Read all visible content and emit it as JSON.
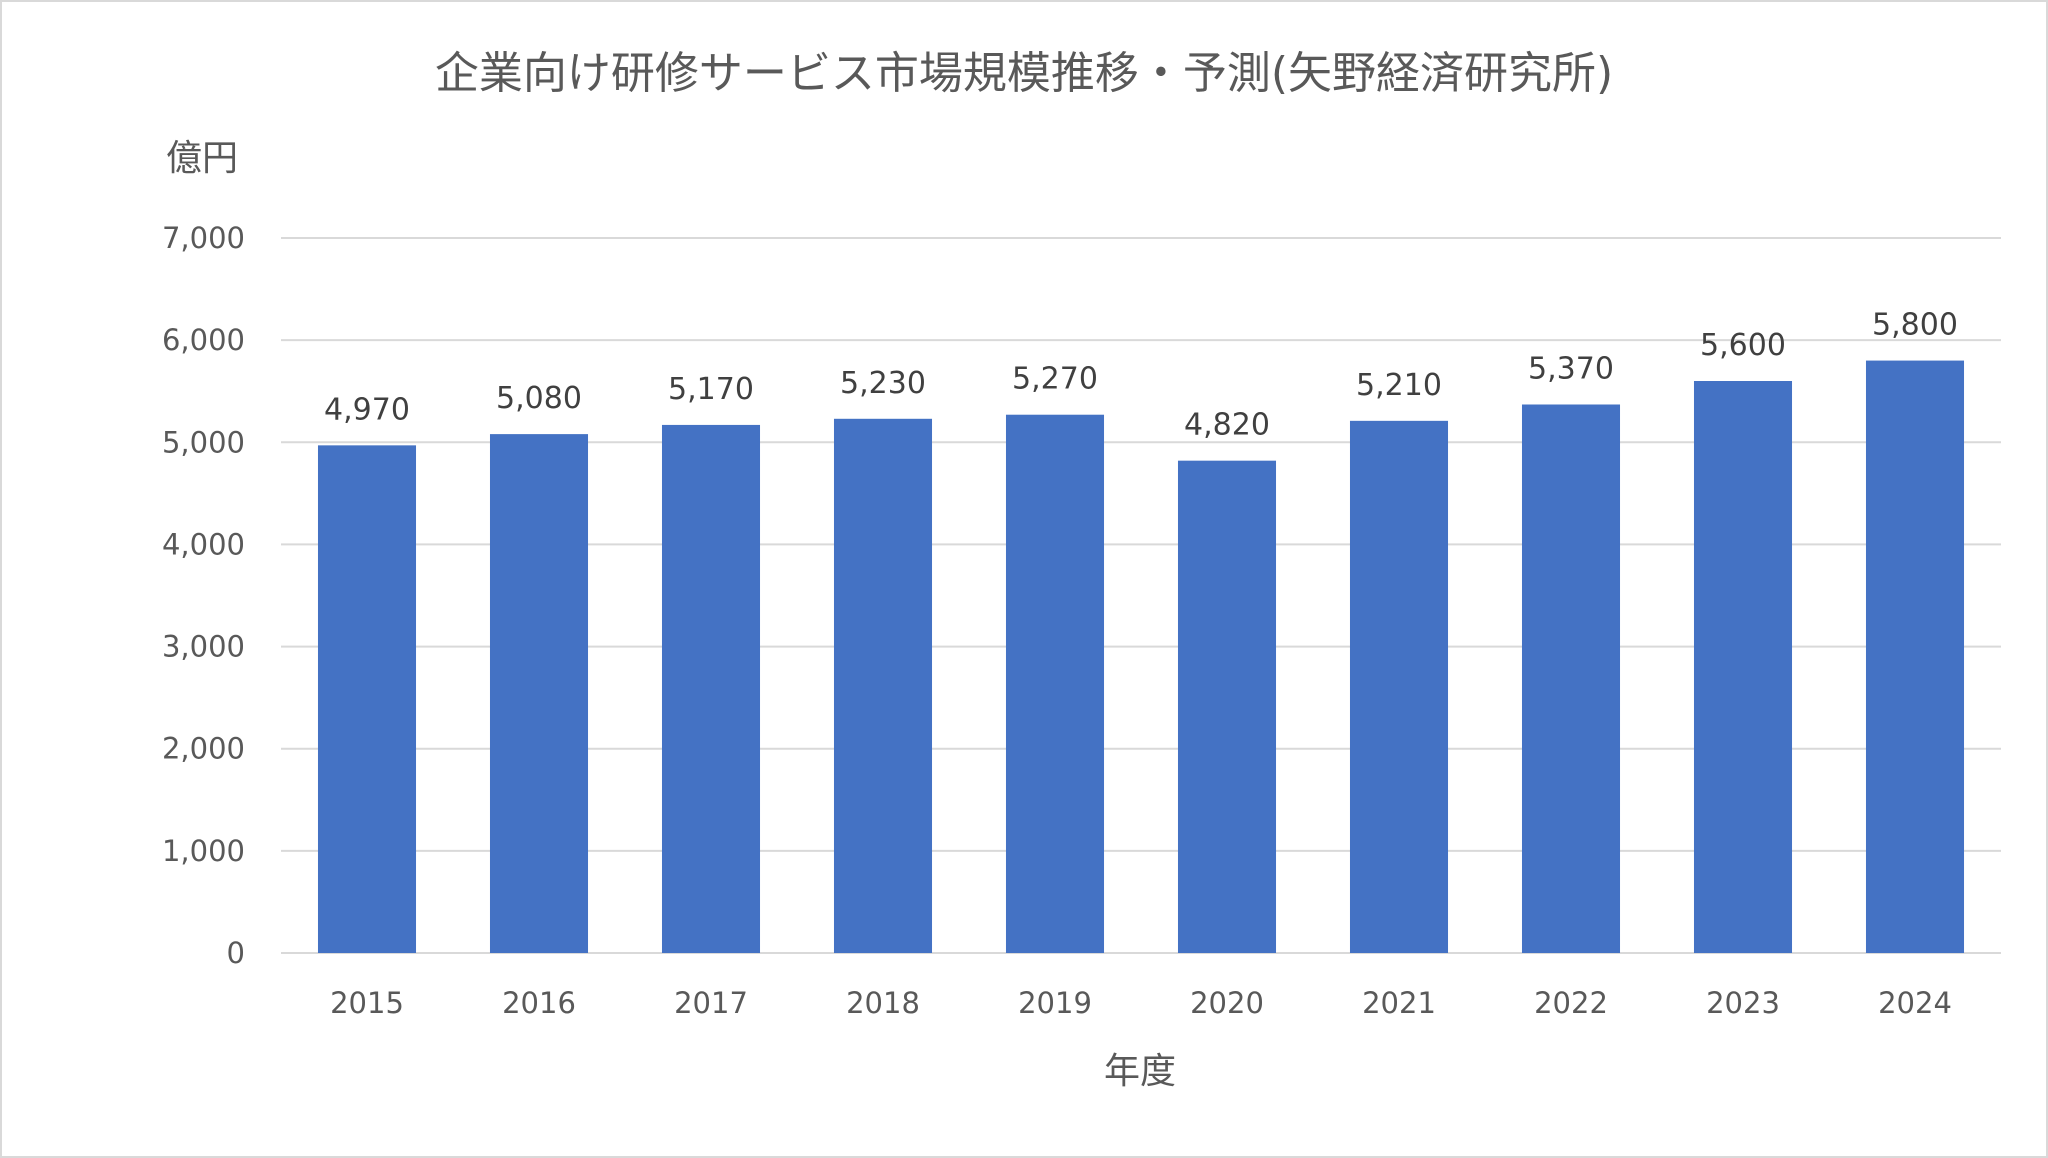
{
  "chart_data": {
    "type": "bar",
    "title": "企業向け研修サービス市場規模推移・予測(矢野経済研究所)",
    "xlabel": "年度",
    "ylabel": "億円",
    "categories": [
      "2015",
      "2016",
      "2017",
      "2018",
      "2019",
      "2020",
      "2021",
      "2022",
      "2023",
      "2024"
    ],
    "values": [
      4970,
      5080,
      5170,
      5230,
      5270,
      4820,
      5210,
      5370,
      5600,
      5800
    ],
    "data_labels": [
      "4,970",
      "5,080",
      "5,170",
      "5,230",
      "5,270",
      "4,820",
      "5,210",
      "5,370",
      "5,600",
      "5,800"
    ],
    "ylim": [
      0,
      7000
    ],
    "yticks": [
      0,
      1000,
      2000,
      3000,
      4000,
      5000,
      6000,
      7000
    ],
    "ytick_labels": [
      "0",
      "1,000",
      "2,000",
      "3,000",
      "4,000",
      "5,000",
      "6,000",
      "7,000"
    ],
    "grid": true,
    "legend": "none",
    "bar_color": "#4472C4"
  }
}
